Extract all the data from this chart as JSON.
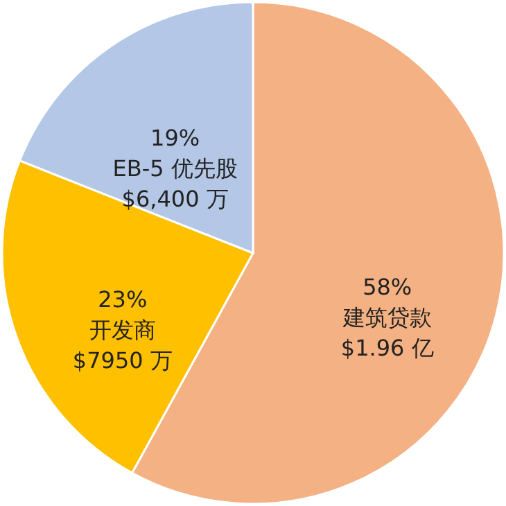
{
  "chart_data": {
    "type": "pie",
    "categories": [
      "建筑贷款",
      "开发商",
      "EB-5 优先股"
    ],
    "values": [
      58,
      23,
      19
    ],
    "colors": [
      "#f4b183",
      "#ffc000",
      "#b4c7e7"
    ],
    "value_labels": [
      "58%",
      "23%",
      "19%"
    ],
    "annotations": [
      {
        "text": "$1.96 亿",
        "x": "建筑贷款"
      },
      {
        "text": "$7950 万",
        "x": "开发商"
      },
      {
        "text": "$6,400 万",
        "x": "EB-5 优先股"
      }
    ]
  }
}
